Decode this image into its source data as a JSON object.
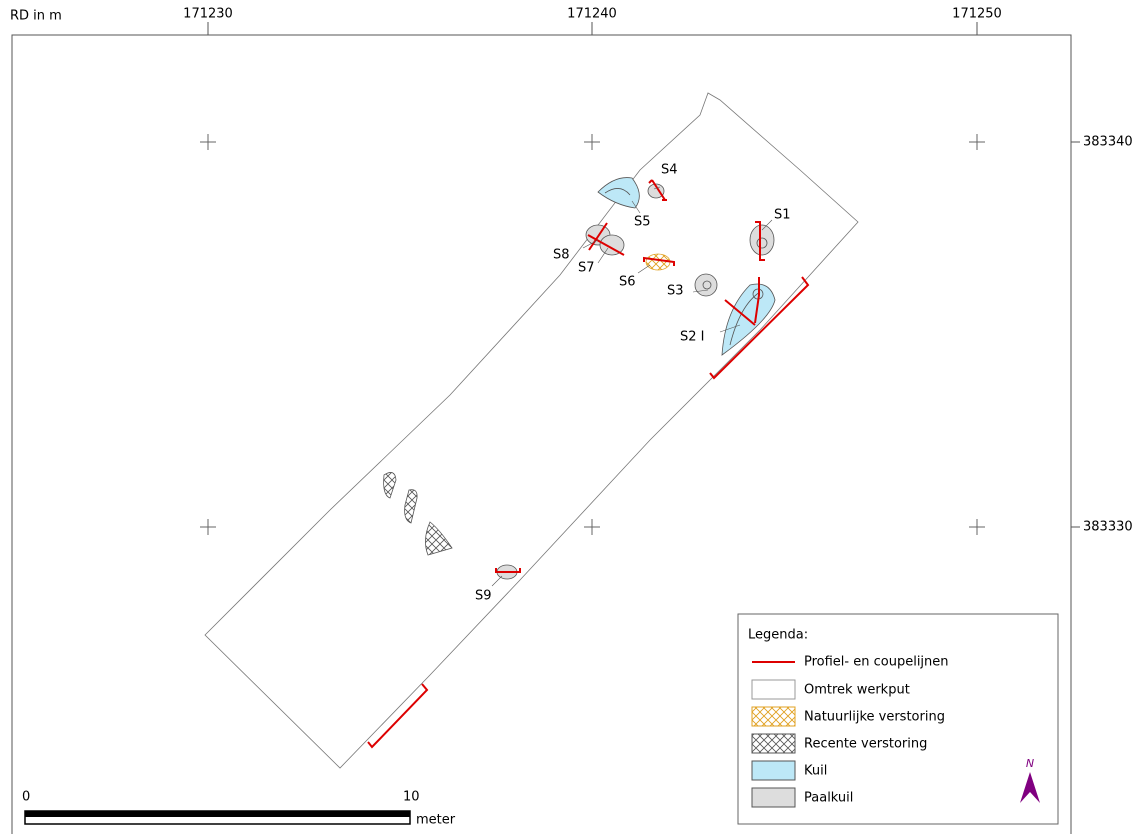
{
  "frame": {
    "corner_label": "RD in m",
    "x_labels": [
      "171230",
      "171240",
      "171250"
    ],
    "y_labels": [
      "383340",
      "383330"
    ]
  },
  "features": [
    "S1",
    "S2 I",
    "S3",
    "S4",
    "S5",
    "S6",
    "S7",
    "S8",
    "S9"
  ],
  "legend": {
    "title": "Legenda:",
    "items": [
      "Profiel- en coupelijnen",
      "Omtrek werkput",
      "Natuurlijke verstoring",
      "Recente verstoring",
      "Kuil",
      "Paalkuil"
    ]
  },
  "scale_bar": {
    "labels": [
      "0",
      "10"
    ],
    "unit": "meter"
  },
  "north": "N"
}
